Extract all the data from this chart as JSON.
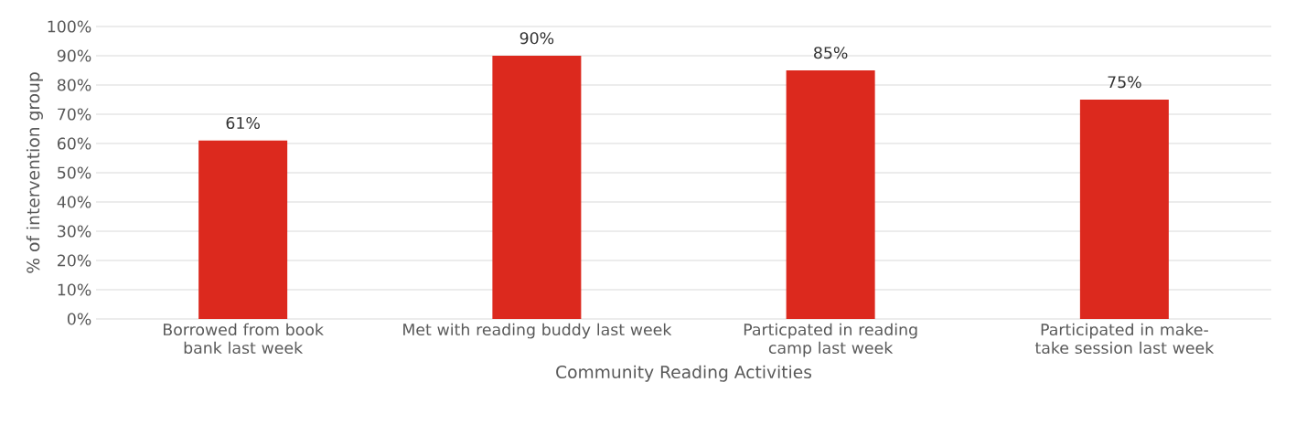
{
  "chart_data": {
    "type": "bar",
    "xlabel": "Community Reading Activities",
    "ylabel": "% of  intervention group",
    "categories": [
      "Borrowed from book bank last week",
      "Met with reading buddy last week",
      "Particpated in reading camp last week",
      "Participated in make-take session last week"
    ],
    "values": [
      61,
      90,
      85,
      75
    ],
    "color": "#dc291e",
    "value_labels": [
      "61%",
      "90%",
      "85%",
      "75%"
    ],
    "ylim": [
      0,
      100
    ],
    "yticks": [
      {
        "value": 0,
        "label": "0%"
      },
      {
        "value": 10,
        "label": "10%"
      },
      {
        "value": 20,
        "label": "20%"
      },
      {
        "value": 30,
        "label": "30%"
      },
      {
        "value": 40,
        "label": "40%"
      },
      {
        "value": 50,
        "label": "50%"
      },
      {
        "value": 60,
        "label": "60%"
      },
      {
        "value": 70,
        "label": "70%"
      },
      {
        "value": 80,
        "label": "80%"
      },
      {
        "value": 90,
        "label": "90%"
      },
      {
        "value": 100,
        "label": "100%"
      }
    ],
    "grid": "y"
  }
}
